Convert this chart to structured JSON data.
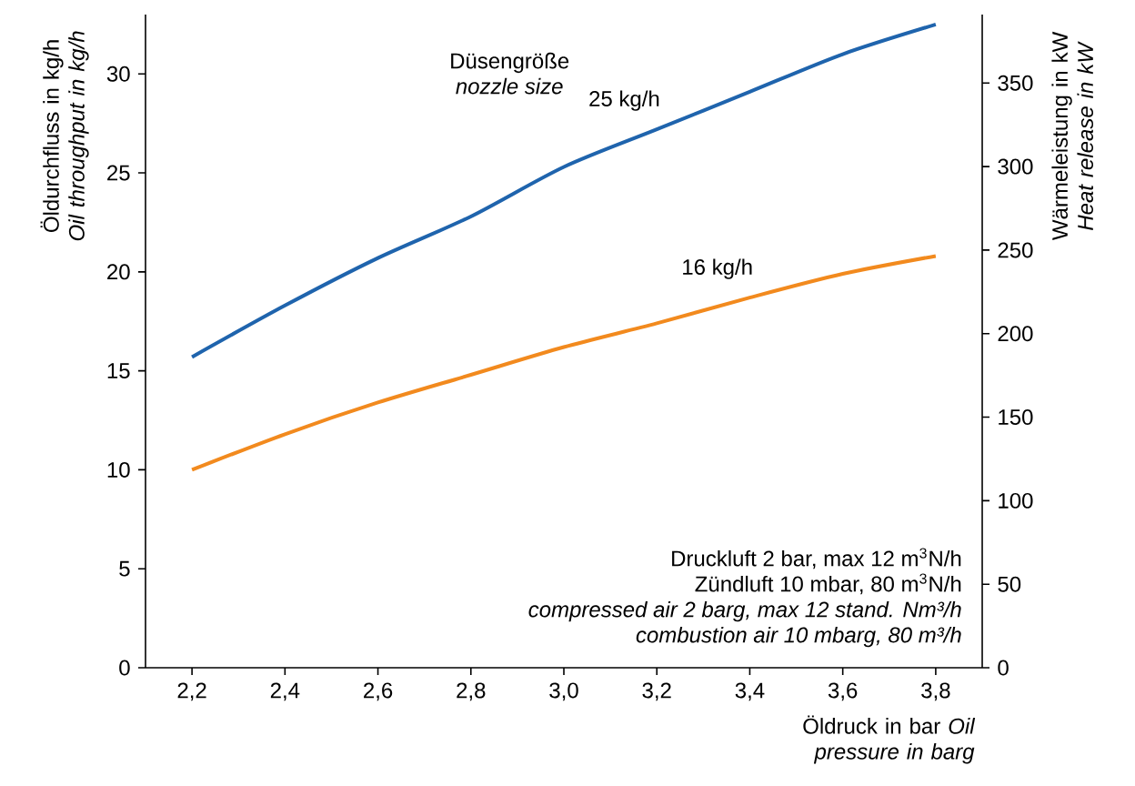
{
  "chart_data": {
    "type": "line",
    "xlabel": "Öldruck in bar *Oil pressure in barg*",
    "ylabel": "Öldurchfluss in kg/h *Oil throughput in kg/h*",
    "y2label": "Wärmeleistung in kW *Heat release in kW*",
    "x": [
      2.2,
      2.4,
      2.6,
      2.8,
      3.0,
      3.2,
      3.4,
      3.6,
      3.8
    ],
    "series": [
      {
        "name": "25 kg/h",
        "color": "#1f64ad",
        "values": [
          15.7,
          18.3,
          20.7,
          22.8,
          25.3,
          27.2,
          29.1,
          31.0,
          32.5
        ]
      },
      {
        "name": "16 kg/h",
        "color": "#f28a1e",
        "values": [
          10.0,
          11.8,
          13.4,
          14.8,
          16.2,
          17.4,
          18.7,
          19.9,
          20.8
        ]
      }
    ],
    "xlim": [
      2.1,
      3.9
    ],
    "xticks": [
      {
        "value": 2.2,
        "label": "2,2"
      },
      {
        "value": 2.4,
        "label": "2,4"
      },
      {
        "value": 2.6,
        "label": "2,6"
      },
      {
        "value": 2.8,
        "label": "2,8"
      },
      {
        "value": 3.0,
        "label": "3,0"
      },
      {
        "value": 3.2,
        "label": "3,2"
      },
      {
        "value": 3.4,
        "label": "3,4"
      },
      {
        "value": 3.6,
        "label": "3,6"
      },
      {
        "value": 3.8,
        "label": "3,8"
      }
    ],
    "ylim": [
      0,
      33
    ],
    "yticks": [
      0,
      5,
      10,
      15,
      20,
      25,
      30
    ],
    "y2lim": [
      0,
      391
    ],
    "y2ticks": [
      0,
      50,
      100,
      150,
      200,
      250,
      300,
      350
    ],
    "annotations": [
      "Düsengröße",
      "nozzle size",
      "Druckluft 2 bar, max 12 m$^{3}$N/h",
      "Zündluft 10 mbar, 80 m$^{3}$N/h",
      "compressed air 2 barg, max 12 stand. Nm³/h",
      "combustion air 10 mbarg, 80 m³/h"
    ],
    "grid": false,
    "marker": "none",
    "line_style": "solid"
  }
}
